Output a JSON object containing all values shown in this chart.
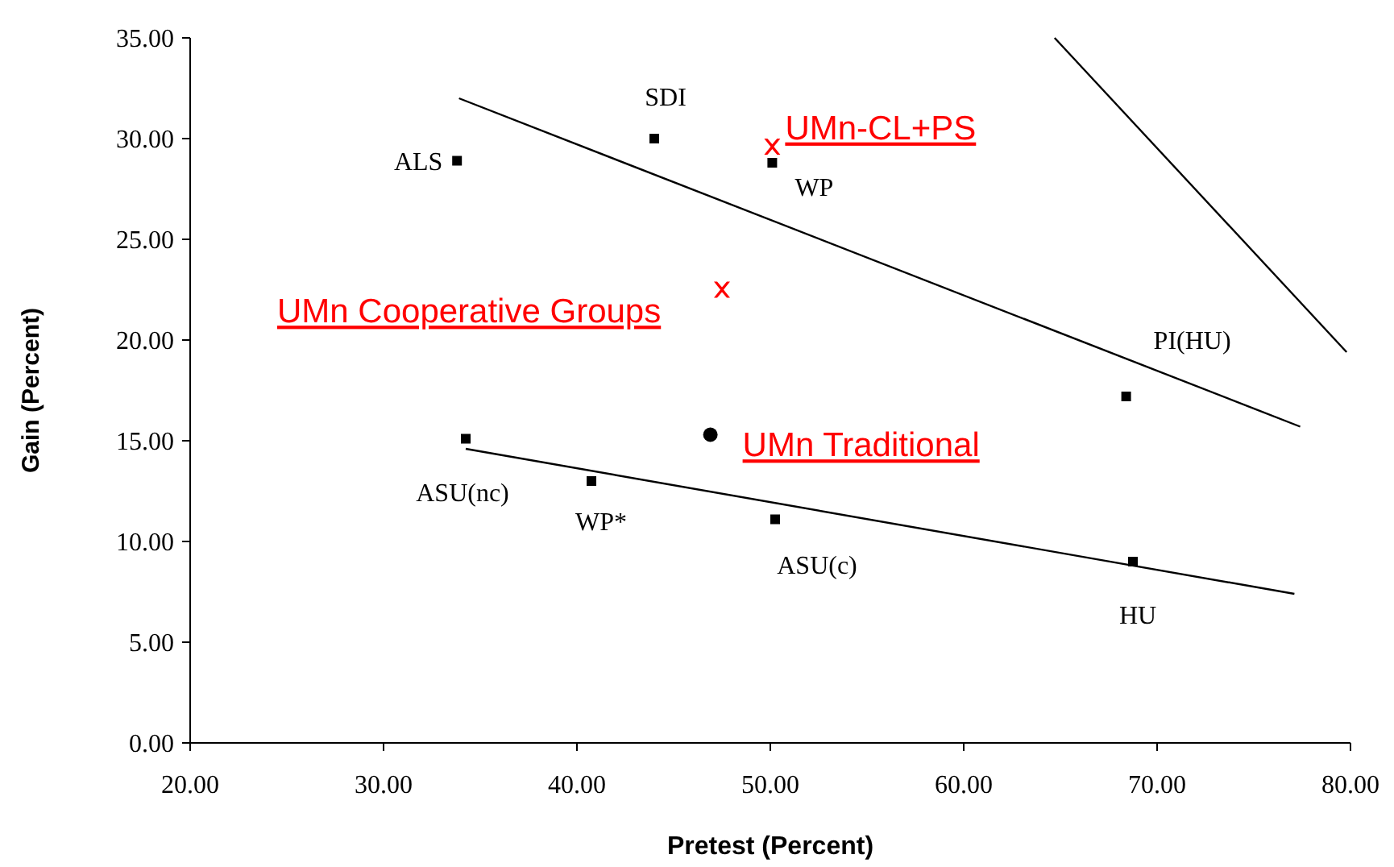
{
  "chart_data": {
    "type": "scatter",
    "xlabel": "Pretest (Percent)",
    "ylabel": "Gain (Percent)",
    "xlim": [
      20,
      80
    ],
    "ylim": [
      0,
      35
    ],
    "xticks": [
      {
        "value": 20,
        "label": "20.00"
      },
      {
        "value": 30,
        "label": "30.00"
      },
      {
        "value": 40,
        "label": "40.00"
      },
      {
        "value": 50,
        "label": "50.00"
      },
      {
        "value": 60,
        "label": "60.00"
      },
      {
        "value": 70,
        "label": "70.00"
      },
      {
        "value": 80,
        "label": "80.00"
      }
    ],
    "yticks": [
      {
        "value": 0,
        "label": "0.00"
      },
      {
        "value": 5,
        "label": "5.00"
      },
      {
        "value": 10,
        "label": "10.00"
      },
      {
        "value": 15,
        "label": "15.00"
      },
      {
        "value": 20,
        "label": "20.00"
      },
      {
        "value": 25,
        "label": "25.00"
      },
      {
        "value": 30,
        "label": "30.00"
      },
      {
        "value": 35,
        "label": "35.00"
      }
    ],
    "grid": false,
    "series": [
      {
        "marker": "square",
        "color": "#000000",
        "x": [
          33.8,
          44.0,
          50.1,
          68.4,
          34.25,
          40.75,
          50.25,
          68.75
        ],
        "values": [
          28.9,
          30.0,
          28.8,
          17.2,
          15.1,
          13.0,
          11.1,
          9.0
        ]
      },
      {
        "name": "UMn-CL+PS",
        "marker": "cross",
        "color": "#ff0000",
        "x": [
          50.1
        ],
        "values": [
          29.6
        ]
      },
      {
        "name": "UMn Cooperative Groups",
        "marker": "cross",
        "color": "#ff0000",
        "x": [
          47.5
        ],
        "values": [
          22.5
        ]
      },
      {
        "name": "UMn Traditional",
        "marker": "circle",
        "color": "#000000",
        "x": [
          46.9
        ],
        "values": [
          15.3
        ]
      },
      {
        "type": "line",
        "marker": "none",
        "color": "#000000",
        "x": [
          33.9,
          77.4
        ],
        "values": [
          32.0,
          15.7
        ]
      },
      {
        "type": "line",
        "marker": "none",
        "color": "#000000",
        "x": [
          34.25,
          77.1
        ],
        "values": [
          14.6,
          7.4
        ]
      },
      {
        "type": "line",
        "marker": "none",
        "color": "#000000",
        "x": [
          64.7,
          79.8
        ],
        "values": [
          35.0,
          19.4
        ]
      }
    ],
    "annotations": [
      {
        "text": "ALS",
        "x": 33.8,
        "y": 28.9
      },
      {
        "text": "SDI",
        "x": 44.0,
        "y": 30.0
      },
      {
        "text": "WP",
        "x": 50.1,
        "y": 28.8
      },
      {
        "text": "PI(HU)",
        "x": 68.4,
        "y": 17.2
      },
      {
        "text": "ASU(nc)",
        "x": 34.25,
        "y": 15.1
      },
      {
        "text": "WP*",
        "x": 40.75,
        "y": 13.0
      },
      {
        "text": "ASU(c)",
        "x": 50.25,
        "y": 11.1
      },
      {
        "text": "HU",
        "x": 68.75,
        "y": 9.0
      }
    ]
  }
}
